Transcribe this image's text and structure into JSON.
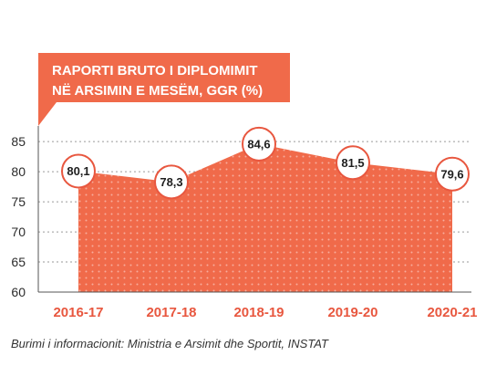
{
  "chart_data": {
    "type": "area",
    "title_lines": [
      "RAPORTI BRUTO I DIPLOMIMIT",
      "NË ARSIMIN E MESËM, GGR (%)"
    ],
    "categories": [
      "2016-17",
      "2017-18",
      "2018-19",
      "2019-20",
      "2020-21"
    ],
    "values": [
      80.1,
      78.3,
      84.6,
      81.5,
      79.6
    ],
    "value_labels": [
      "80,1",
      "78,3",
      "84,6",
      "81,5",
      "79,6"
    ],
    "yticks": [
      60,
      65,
      70,
      75,
      80,
      85
    ],
    "ylim": [
      60,
      87
    ],
    "grid": true,
    "legend": "none"
  },
  "colors": {
    "accent": "#f06a4a",
    "label_border": "#e8573f",
    "grid": "#9a9a9a"
  },
  "source": "Burimi i informacionit: Ministria e Arsimit dhe Sportit, INSTAT"
}
